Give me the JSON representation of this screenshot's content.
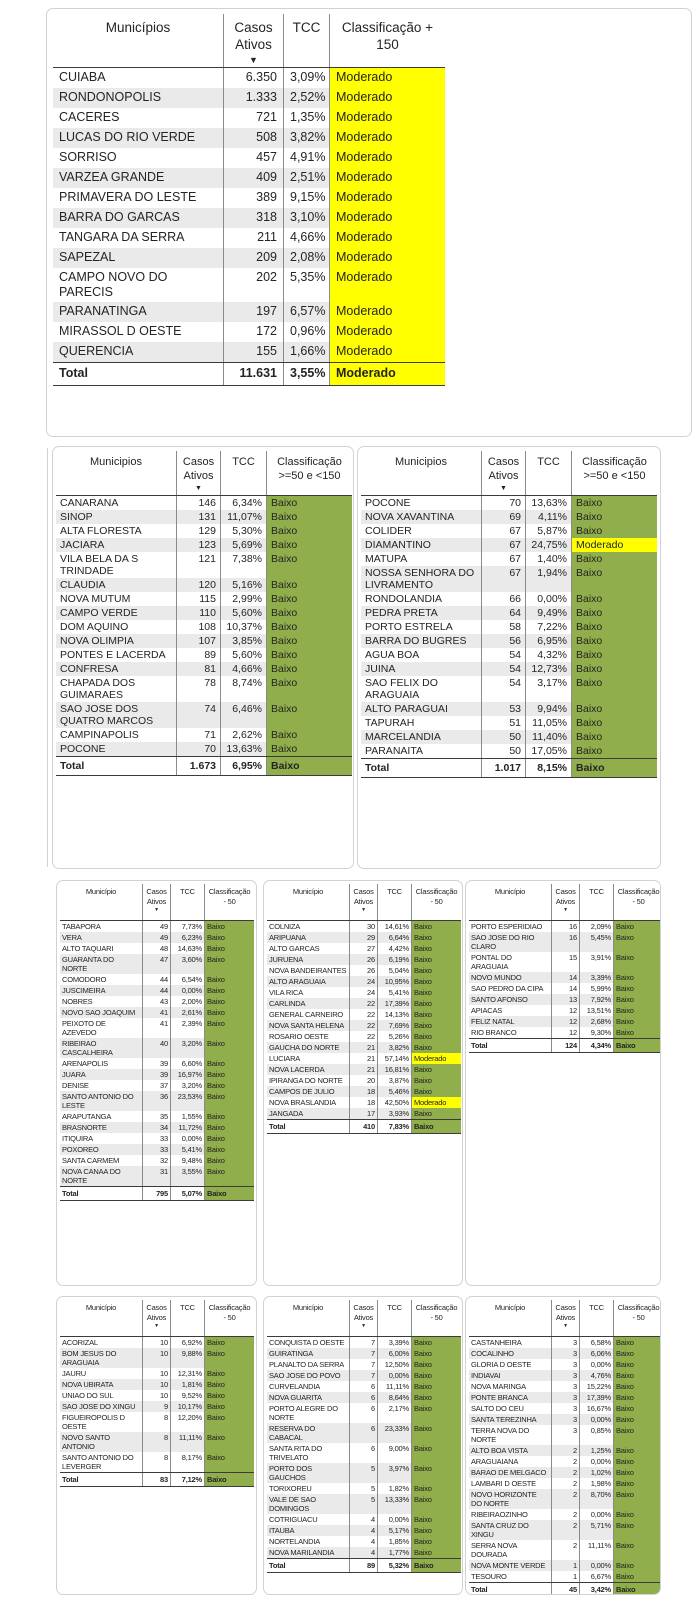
{
  "colors": {
    "baixo_green": "#90ae4b",
    "moderado_yellow": "#ffff00",
    "alt_row": "#eaeaea",
    "text": "#252423",
    "grid_line": "#8a8a8a",
    "header_line": "#3b3b3b",
    "card_border": "#d2d2d2"
  },
  "sort_icon": "▼",
  "tables": [
    {
      "name": "classificacao-mais-150",
      "headers": {
        "municipio": "Municípios",
        "casos": "Casos Ativos",
        "tcc": "TCC",
        "classificacao": "Classificação + 150"
      },
      "rows": [
        [
          "CUIABA",
          "6.350",
          "3,09%",
          "Moderado"
        ],
        [
          "RONDONOPOLIS",
          "1.333",
          "2,52%",
          "Moderado"
        ],
        [
          "CACERES",
          "721",
          "1,35%",
          "Moderado"
        ],
        [
          "LUCAS DO RIO VERDE",
          "508",
          "3,82%",
          "Moderado"
        ],
        [
          "SORRISO",
          "457",
          "4,91%",
          "Moderado"
        ],
        [
          "VARZEA GRANDE",
          "409",
          "2,51%",
          "Moderado"
        ],
        [
          "PRIMAVERA DO LESTE",
          "389",
          "9,15%",
          "Moderado"
        ],
        [
          "BARRA DO GARCAS",
          "318",
          "3,10%",
          "Moderado"
        ],
        [
          "TANGARA DA SERRA",
          "211",
          "4,66%",
          "Moderado"
        ],
        [
          "SAPEZAL",
          "209",
          "2,08%",
          "Moderado"
        ],
        [
          "CAMPO NOVO DO PARECIS",
          "202",
          "5,35%",
          "Moderado"
        ],
        [
          "PARANATINGA",
          "197",
          "6,57%",
          "Moderado"
        ],
        [
          "MIRASSOL D OESTE",
          "172",
          "0,96%",
          "Moderado"
        ],
        [
          "QUERENCIA",
          "155",
          "1,66%",
          "Moderado"
        ]
      ],
      "total": [
        "Total",
        "11.631",
        "3,55%",
        "Moderado"
      ]
    },
    {
      "name": "classificacao-50-150-a",
      "headers": {
        "municipio": "Municipios",
        "casos": "Casos Ativos",
        "tcc": "TCC",
        "classificacao": "Classificação >=50 e <150"
      },
      "rows": [
        [
          "CANARANA",
          "146",
          "6,34%",
          "Baixo"
        ],
        [
          "SINOP",
          "131",
          "11,07%",
          "Baixo"
        ],
        [
          "ALTA FLORESTA",
          "129",
          "5,30%",
          "Baixo"
        ],
        [
          "JACIARA",
          "123",
          "5,69%",
          "Baixo"
        ],
        [
          "VILA BELA DA S TRINDADE",
          "121",
          "7,38%",
          "Baixo"
        ],
        [
          "CLAUDIA",
          "120",
          "5,16%",
          "Baixo"
        ],
        [
          "NOVA MUTUM",
          "115",
          "2,99%",
          "Baixo"
        ],
        [
          "CAMPO VERDE",
          "110",
          "5,60%",
          "Baixo"
        ],
        [
          "DOM AQUINO",
          "108",
          "10,37%",
          "Baixo"
        ],
        [
          "NOVA OLIMPIA",
          "107",
          "3,85%",
          "Baixo"
        ],
        [
          "PONTES E LACERDA",
          "89",
          "5,60%",
          "Baixo"
        ],
        [
          "CONFRESA",
          "81",
          "4,66%",
          "Baixo"
        ],
        [
          "CHAPADA DOS GUIMARAES",
          "78",
          "8,74%",
          "Baixo"
        ],
        [
          "SAO JOSE DOS QUATRO MARCOS",
          "74",
          "6,46%",
          "Baixo"
        ],
        [
          "CAMPINAPOLIS",
          "71",
          "2,62%",
          "Baixo"
        ],
        [
          "POCONE",
          "70",
          "13,63%",
          "Baixo"
        ]
      ],
      "total": [
        "Total",
        "1.673",
        "6,95%",
        "Baixo"
      ]
    },
    {
      "name": "classificacao-50-150-b",
      "headers": {
        "municipio": "Municipios",
        "casos": "Casos Ativos",
        "tcc": "TCC",
        "classificacao": "Classificação >=50 e <150"
      },
      "rows": [
        [
          "POCONE",
          "70",
          "13,63%",
          "Baixo"
        ],
        [
          "NOVA XAVANTINA",
          "69",
          "4,11%",
          "Baixo"
        ],
        [
          "COLIDER",
          "67",
          "5,87%",
          "Baixo"
        ],
        [
          "DIAMANTINO",
          "67",
          "24,75%",
          "Moderado"
        ],
        [
          "MATUPA",
          "67",
          "1,40%",
          "Baixo"
        ],
        [
          "NOSSA SENHORA DO LIVRAMENTO",
          "67",
          "1,94%",
          "Baixo"
        ],
        [
          "RONDOLANDIA",
          "66",
          "0,00%",
          "Baixo"
        ],
        [
          "PEDRA PRETA",
          "64",
          "9,49%",
          "Baixo"
        ],
        [
          "PORTO ESTRELA",
          "58",
          "7,22%",
          "Baixo"
        ],
        [
          "BARRA DO BUGRES",
          "56",
          "6,95%",
          "Baixo"
        ],
        [
          "AGUA BOA",
          "54",
          "4,32%",
          "Baixo"
        ],
        [
          "JUINA",
          "54",
          "12,73%",
          "Baixo"
        ],
        [
          "SAO FELIX DO ARAGUAIA",
          "54",
          "3,17%",
          "Baixo"
        ],
        [
          "ALTO PARAGUAI",
          "53",
          "9,94%",
          "Baixo"
        ],
        [
          "TAPURAH",
          "51",
          "11,05%",
          "Baixo"
        ],
        [
          "MARCELANDIA",
          "50",
          "11,40%",
          "Baixo"
        ],
        [
          "PARANAITA",
          "50",
          "17,05%",
          "Baixo"
        ]
      ],
      "total": [
        "Total",
        "1.017",
        "8,15%",
        "Baixo"
      ]
    },
    {
      "name": "classificacao-menos-50-a",
      "headers": {
        "municipio": "Município",
        "casos": "Casos Ativos",
        "tcc": "TCC",
        "classificacao": "Classificação - 50"
      },
      "rows": [
        [
          "TABAPORA",
          "49",
          "7,73%",
          "Baixo"
        ],
        [
          "VERA",
          "49",
          "6,23%",
          "Baixo"
        ],
        [
          "ALTO TAQUARI",
          "48",
          "14,63%",
          "Baixo"
        ],
        [
          "GUARANTA DO NORTE",
          "47",
          "3,60%",
          "Baixo"
        ],
        [
          "COMODORO",
          "44",
          "6,54%",
          "Baixo"
        ],
        [
          "JUSCIMEIRA",
          "44",
          "0,00%",
          "Baixo"
        ],
        [
          "NOBRES",
          "43",
          "2,00%",
          "Baixo"
        ],
        [
          "NOVO SAO JOAQUIM",
          "41",
          "2,61%",
          "Baixo"
        ],
        [
          "PEIXOTO DE AZEVEDO",
          "41",
          "2,39%",
          "Baixo"
        ],
        [
          "RIBEIRAO CASCALHEIRA",
          "40",
          "3,20%",
          "Baixo"
        ],
        [
          "ARENAPOLIS",
          "39",
          "6,60%",
          "Baixo"
        ],
        [
          "JUARA",
          "39",
          "16,97%",
          "Baixo"
        ],
        [
          "DENISE",
          "37",
          "3,20%",
          "Baixo"
        ],
        [
          "SANTO ANTONIO DO LESTE",
          "36",
          "23,53%",
          "Baixo"
        ],
        [
          "ARAPUTANGA",
          "35",
          "1,55%",
          "Baixo"
        ],
        [
          "BRASNORTE",
          "34",
          "11,72%",
          "Baixo"
        ],
        [
          "ITIQUIRA",
          "33",
          "0,00%",
          "Baixo"
        ],
        [
          "POXOREO",
          "33",
          "5,41%",
          "Baixo"
        ],
        [
          "SANTA CARMEM",
          "32",
          "9,48%",
          "Baixo"
        ],
        [
          "NOVA CANAA DO NORTE",
          "31",
          "3,55%",
          "Baixo"
        ]
      ],
      "total": [
        "Total",
        "795",
        "5,07%",
        "Baixo"
      ]
    },
    {
      "name": "classificacao-menos-50-b",
      "headers": {
        "municipio": "Município",
        "casos": "Casos Ativos",
        "tcc": "TCC",
        "classificacao": "Classificação - 50"
      },
      "rows": [
        [
          "COLNIZA",
          "30",
          "14,61%",
          "Baixo"
        ],
        [
          "ARIPUANA",
          "29",
          "6,64%",
          "Baixo"
        ],
        [
          "ALTO GARCAS",
          "27",
          "4,42%",
          "Baixo"
        ],
        [
          "JURUENA",
          "26",
          "6,19%",
          "Baixo"
        ],
        [
          "NOVA BANDEIRANTES",
          "26",
          "5,04%",
          "Baixo"
        ],
        [
          "ALTO ARAGUAIA",
          "24",
          "10,95%",
          "Baixo"
        ],
        [
          "VILA RICA",
          "24",
          "5,41%",
          "Baixo"
        ],
        [
          "CARLINDA",
          "22",
          "17,39%",
          "Baixo"
        ],
        [
          "GENERAL CARNEIRO",
          "22",
          "14,13%",
          "Baixo"
        ],
        [
          "NOVA SANTA HELENA",
          "22",
          "7,69%",
          "Baixo"
        ],
        [
          "ROSARIO OESTE",
          "22",
          "5,26%",
          "Baixo"
        ],
        [
          "GAUCHA DO NORTE",
          "21",
          "3,82%",
          "Baixo"
        ],
        [
          "LUCIARA",
          "21",
          "57,14%",
          "Moderado"
        ],
        [
          "NOVA LACERDA",
          "21",
          "16,81%",
          "Baixo"
        ],
        [
          "IPIRANGA DO NORTE",
          "20",
          "3,87%",
          "Baixo"
        ],
        [
          "CAMPOS DE JULIO",
          "18",
          "5,46%",
          "Baixo"
        ],
        [
          "NOVA BRASLANDIA",
          "18",
          "42,50%",
          "Moderado"
        ],
        [
          "JANGADA",
          "17",
          "3,93%",
          "Baixo"
        ]
      ],
      "total": [
        "Total",
        "410",
        "7,83%",
        "Baixo"
      ]
    },
    {
      "name": "classificacao-menos-50-c",
      "headers": {
        "municipio": "Município",
        "casos": "Casos Ativos",
        "tcc": "TCC",
        "classificacao": "Classificação - 50"
      },
      "rows": [
        [
          "PORTO ESPERIDIAO",
          "16",
          "2,09%",
          "Baixo"
        ],
        [
          "SAO JOSE DO RIO CLARO",
          "16",
          "5,45%",
          "Baixo"
        ],
        [
          "PONTAL DO ARAGUAIA",
          "15",
          "3,91%",
          "Baixo"
        ],
        [
          "NOVO MUNDO",
          "14",
          "3,39%",
          "Baixo"
        ],
        [
          "SAO PEDRO DA CIPA",
          "14",
          "5,99%",
          "Baixo"
        ],
        [
          "SANTO AFONSO",
          "13",
          "7,92%",
          "Baixo"
        ],
        [
          "APIACAS",
          "12",
          "13,51%",
          "Baixo"
        ],
        [
          "FELIZ NATAL",
          "12",
          "2,68%",
          "Baixo"
        ],
        [
          "RIO BRANCO",
          "12",
          "9,30%",
          "Baixo"
        ]
      ],
      "total": [
        "Total",
        "124",
        "4,34%",
        "Baixo"
      ]
    },
    {
      "name": "classificacao-menos-50-d",
      "headers": {
        "municipio": "Município",
        "casos": "Casos Ativos",
        "tcc": "TCC",
        "classificacao": "Classificação - 50"
      },
      "rows": [
        [
          "ACORIZAL",
          "10",
          "6,92%",
          "Baixo"
        ],
        [
          "BOM JESUS DO ARAGUAIA",
          "10",
          "9,88%",
          "Baixo"
        ],
        [
          "JAURU",
          "10",
          "12,31%",
          "Baixo"
        ],
        [
          "NOVA UBIRATA",
          "10",
          "1,81%",
          "Baixo"
        ],
        [
          "UNIAO DO SUL",
          "10",
          "9,52%",
          "Baixo"
        ],
        [
          "SAO JOSE DO XINGU",
          "9",
          "10,17%",
          "Baixo"
        ],
        [
          "FIGUEIROPOLIS D OESTE",
          "8",
          "12,20%",
          "Baixo"
        ],
        [
          "NOVO SANTO ANTONIO",
          "8",
          "11,11%",
          "Baixo"
        ],
        [
          "SANTO ANTONIO DO LEVERGER",
          "8",
          "8,17%",
          "Baixo"
        ]
      ],
      "total": [
        "Total",
        "83",
        "7,12%",
        "Baixo"
      ]
    },
    {
      "name": "classificacao-menos-50-e",
      "headers": {
        "municipio": "Município",
        "casos": "Casos Ativos",
        "tcc": "TCC",
        "classificacao": "Classificação - 50"
      },
      "rows": [
        [
          "CONQUISTA D OESTE",
          "7",
          "3,39%",
          "Baixo"
        ],
        [
          "GUIRATINGA",
          "7",
          "6,00%",
          "Baixo"
        ],
        [
          "PLANALTO DA SERRA",
          "7",
          "12,50%",
          "Baixo"
        ],
        [
          "SAO JOSE DO POVO",
          "7",
          "0,00%",
          "Baixo"
        ],
        [
          "CURVELANDIA",
          "6",
          "11,11%",
          "Baixo"
        ],
        [
          "NOVA GUARITA",
          "6",
          "8,64%",
          "Baixo"
        ],
        [
          "PORTO ALEGRE DO NORTE",
          "6",
          "2,17%",
          "Baixo"
        ],
        [
          "RESERVA DO CABACAL",
          "6",
          "23,33%",
          "Baixo"
        ],
        [
          "SANTA RITA DO TRIVELATO",
          "6",
          "9,00%",
          "Baixo"
        ],
        [
          "PORTO DOS GAUCHOS",
          "5",
          "3,97%",
          "Baixo"
        ],
        [
          "TORIXOREU",
          "5",
          "1,82%",
          "Baixo"
        ],
        [
          "VALE DE SAO DOMINGOS",
          "5",
          "13,33%",
          "Baixo"
        ],
        [
          "COTRIGUACU",
          "4",
          "0,00%",
          "Baixo"
        ],
        [
          "ITAUBA",
          "4",
          "5,17%",
          "Baixo"
        ],
        [
          "NORTELANDIA",
          "4",
          "1,85%",
          "Baixo"
        ],
        [
          "NOVA MARILANDIA",
          "4",
          "1,77%",
          "Baixo"
        ]
      ],
      "total": [
        "Total",
        "89",
        "5,32%",
        "Baixo"
      ]
    },
    {
      "name": "classificacao-menos-50-f",
      "headers": {
        "municipio": "Município",
        "casos": "Casos Ativos",
        "tcc": "TCC",
        "classificacao": "Classificação - 50"
      },
      "rows": [
        [
          "CASTANHEIRA",
          "3",
          "6,58%",
          "Baixo"
        ],
        [
          "COCALINHO",
          "3",
          "6,06%",
          "Baixo"
        ],
        [
          "GLORIA D OESTE",
          "3",
          "0,00%",
          "Baixo"
        ],
        [
          "INDIAVAI",
          "3",
          "4,76%",
          "Baixo"
        ],
        [
          "NOVA MARINGA",
          "3",
          "15,22%",
          "Baixo"
        ],
        [
          "PONTE BRANCA",
          "3",
          "17,39%",
          "Baixo"
        ],
        [
          "SALTO DO CEU",
          "3",
          "16,67%",
          "Baixo"
        ],
        [
          "SANTA TEREZINHA",
          "3",
          "0,00%",
          "Baixo"
        ],
        [
          "TERRA NOVA DO NORTE",
          "3",
          "0,85%",
          "Baixo"
        ],
        [
          "ALTO BOA VISTA",
          "2",
          "1,25%",
          "Baixo"
        ],
        [
          "ARAGUAIANA",
          "2",
          "0,00%",
          "Baixo"
        ],
        [
          "BARAO DE MELGACO",
          "2",
          "1,02%",
          "Baixo"
        ],
        [
          "LAMBARI D OESTE",
          "2",
          "1,98%",
          "Baixo"
        ],
        [
          "NOVO HORIZONTE DO NORTE",
          "2",
          "8,70%",
          "Baixo"
        ],
        [
          "RIBEIRAOZINHO",
          "2",
          "0,00%",
          "Baixo"
        ],
        [
          "SANTA CRUZ DO XINGU",
          "2",
          "5,71%",
          "Baixo"
        ],
        [
          "SERRA NOVA DOURADA",
          "2",
          "11,11%",
          "Baixo"
        ],
        [
          "NOVA MONTE VERDE",
          "1",
          "0,00%",
          "Baixo"
        ],
        [
          "TESOURO",
          "1",
          "6,67%",
          "Baixo"
        ]
      ],
      "total": [
        "Total",
        "45",
        "3,42%",
        "Baixo"
      ]
    }
  ]
}
